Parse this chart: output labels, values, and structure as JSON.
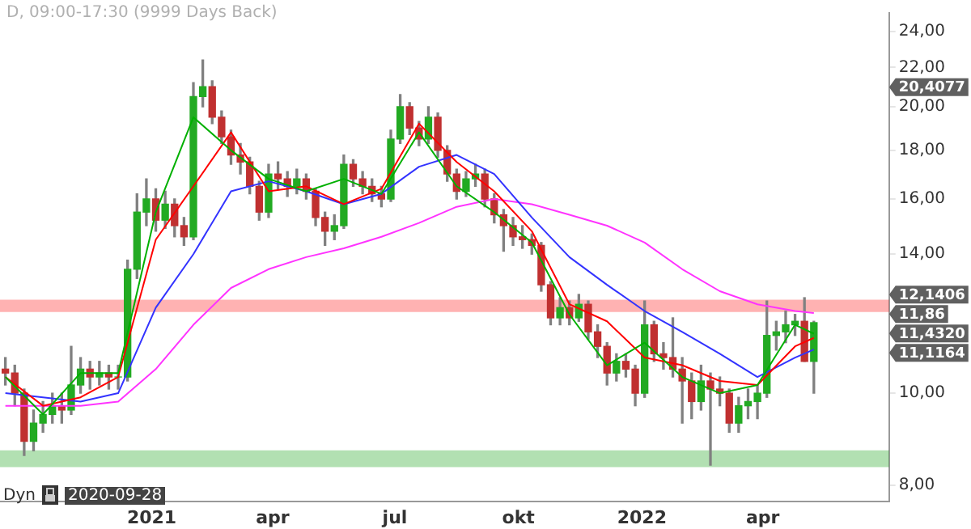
{
  "chart_data": {
    "type": "candlestick",
    "title": "D, 09:00-17:30 (9999 Days Back)",
    "x": [
      "2020-09-14",
      "2020-09-21",
      "2020-09-28",
      "2020-10-05",
      "2020-10-12",
      "2020-10-19",
      "2020-10-26",
      "2020-11-02",
      "2020-11-09",
      "2020-11-16",
      "2020-11-23",
      "2020-11-30",
      "2020-12-07",
      "2020-12-14",
      "2020-12-21",
      "2020-12-28",
      "2021-01-04",
      "2021-01-11",
      "2021-01-18",
      "2021-01-25",
      "2021-02-01",
      "2021-02-08",
      "2021-02-15",
      "2021-02-22",
      "2021-03-01",
      "2021-03-08",
      "2021-03-15",
      "2021-03-22",
      "2021-03-29",
      "2021-04-05",
      "2021-04-12",
      "2021-04-19",
      "2021-04-26",
      "2021-05-03",
      "2021-05-10",
      "2021-05-17",
      "2021-05-24",
      "2021-05-31",
      "2021-06-07",
      "2021-06-14",
      "2021-06-21",
      "2021-06-28",
      "2021-07-05",
      "2021-07-12",
      "2021-07-19",
      "2021-07-26",
      "2021-08-02",
      "2021-08-09",
      "2021-08-16",
      "2021-08-23",
      "2021-08-30",
      "2021-09-06",
      "2021-09-13",
      "2021-09-20",
      "2021-09-27",
      "2021-10-04",
      "2021-10-11",
      "2021-10-18",
      "2021-10-25",
      "2021-11-01",
      "2021-11-08",
      "2021-11-15",
      "2021-11-22",
      "2021-11-29",
      "2021-12-06",
      "2021-12-13",
      "2021-12-20",
      "2021-12-27",
      "2022-01-03",
      "2022-01-10",
      "2022-01-17",
      "2022-01-24",
      "2022-01-31",
      "2022-02-07",
      "2022-02-14",
      "2022-02-21",
      "2022-02-28",
      "2022-03-07",
      "2022-03-14",
      "2022-03-21",
      "2022-03-28",
      "2022-04-04",
      "2022-04-11",
      "2022-04-18",
      "2022-04-25",
      "2022-05-02",
      "2022-05-09"
    ],
    "ohlc": [
      [
        10.6,
        10.9,
        10.2,
        10.5
      ],
      [
        10.5,
        10.7,
        9.7,
        10.0
      ],
      [
        10.0,
        10.1,
        8.6,
        8.9
      ],
      [
        8.9,
        9.6,
        8.7,
        9.3
      ],
      [
        9.3,
        9.8,
        9.1,
        9.5
      ],
      [
        9.5,
        10.0,
        9.3,
        9.7
      ],
      [
        9.7,
        10.0,
        9.3,
        9.6
      ],
      [
        9.6,
        11.2,
        9.5,
        10.2
      ],
      [
        10.2,
        10.9,
        10.0,
        10.6
      ],
      [
        10.6,
        10.8,
        10.1,
        10.4
      ],
      [
        10.4,
        10.8,
        10.2,
        10.5
      ],
      [
        10.5,
        10.7,
        10.1,
        10.4
      ],
      [
        10.4,
        10.7,
        10.1,
        10.4
      ],
      [
        10.4,
        13.8,
        10.3,
        13.5
      ],
      [
        13.5,
        16.2,
        13.2,
        15.5
      ],
      [
        15.5,
        16.8,
        15.0,
        16.0
      ],
      [
        16.0,
        16.4,
        14.8,
        15.2
      ],
      [
        15.2,
        16.3,
        14.9,
        15.8
      ],
      [
        15.8,
        16.0,
        14.6,
        15.0
      ],
      [
        15.0,
        15.3,
        14.3,
        14.6
      ],
      [
        14.6,
        21.2,
        14.5,
        20.5
      ],
      [
        20.5,
        22.4,
        20.0,
        21.0
      ],
      [
        21.0,
        21.3,
        19.2,
        19.5
      ],
      [
        19.5,
        19.8,
        18.3,
        18.6
      ],
      [
        18.6,
        18.9,
        17.4,
        17.8
      ],
      [
        17.8,
        18.3,
        17.0,
        17.5
      ],
      [
        17.5,
        17.7,
        16.2,
        16.5
      ],
      [
        16.5,
        16.7,
        15.2,
        15.5
      ],
      [
        15.5,
        17.4,
        15.3,
        17.0
      ],
      [
        17.0,
        17.5,
        16.4,
        16.8
      ],
      [
        16.8,
        17.1,
        16.1,
        16.5
      ],
      [
        16.5,
        17.2,
        16.2,
        16.8
      ],
      [
        16.8,
        17.0,
        16.0,
        16.3
      ],
      [
        16.3,
        16.4,
        15.0,
        15.3
      ],
      [
        15.3,
        15.5,
        14.3,
        14.8
      ],
      [
        14.8,
        15.4,
        14.5,
        15.0
      ],
      [
        15.0,
        17.8,
        14.9,
        17.4
      ],
      [
        17.4,
        17.6,
        16.5,
        16.8
      ],
      [
        16.8,
        17.1,
        16.2,
        16.5
      ],
      [
        16.5,
        16.8,
        15.9,
        16.2
      ],
      [
        16.2,
        16.5,
        15.7,
        16.0
      ],
      [
        16.0,
        18.9,
        15.9,
        18.5
      ],
      [
        18.5,
        20.6,
        18.3,
        20.0
      ],
      [
        20.0,
        20.2,
        18.7,
        19.0
      ],
      [
        19.0,
        19.3,
        18.2,
        18.5
      ],
      [
        18.5,
        20.0,
        18.3,
        19.5
      ],
      [
        19.5,
        19.7,
        17.7,
        18.0
      ],
      [
        18.0,
        18.2,
        16.7,
        17.0
      ],
      [
        17.0,
        17.2,
        16.0,
        16.3
      ],
      [
        16.3,
        17.1,
        16.1,
        16.8
      ],
      [
        16.8,
        17.4,
        16.5,
        17.0
      ],
      [
        17.0,
        17.2,
        15.7,
        16.0
      ],
      [
        16.0,
        16.2,
        15.1,
        15.4
      ],
      [
        15.4,
        15.6,
        14.1,
        15.0
      ],
      [
        15.0,
        15.3,
        14.3,
        14.6
      ],
      [
        14.6,
        15.0,
        14.2,
        14.5
      ],
      [
        14.5,
        14.7,
        14.0,
        14.3
      ],
      [
        14.3,
        14.4,
        12.8,
        13.0
      ],
      [
        13.0,
        13.1,
        11.8,
        12.0
      ],
      [
        12.0,
        12.6,
        11.8,
        12.3
      ],
      [
        12.3,
        12.5,
        11.8,
        12.0
      ],
      [
        12.0,
        12.7,
        11.9,
        12.4
      ],
      [
        12.4,
        12.5,
        11.4,
        11.6
      ],
      [
        11.6,
        11.8,
        10.9,
        11.2
      ],
      [
        11.2,
        11.3,
        10.2,
        10.5
      ],
      [
        10.5,
        11.0,
        10.3,
        10.8
      ],
      [
        10.8,
        11.0,
        10.4,
        10.6
      ],
      [
        10.6,
        10.7,
        9.7,
        10.0
      ],
      [
        10.0,
        12.5,
        9.9,
        11.8
      ],
      [
        11.8,
        11.9,
        10.8,
        11.0
      ],
      [
        11.0,
        11.3,
        10.6,
        10.9
      ],
      [
        10.9,
        12.0,
        10.4,
        10.6
      ],
      [
        10.6,
        10.9,
        9.3,
        10.3
      ],
      [
        10.3,
        10.5,
        9.4,
        9.8
      ],
      [
        9.8,
        10.7,
        9.6,
        10.3
      ],
      [
        10.3,
        10.5,
        8.4,
        10.1
      ],
      [
        10.1,
        10.4,
        9.7,
        10.0
      ],
      [
        10.0,
        10.1,
        9.1,
        9.3
      ],
      [
        9.3,
        9.9,
        9.1,
        9.7
      ],
      [
        9.7,
        10.1,
        9.4,
        9.8
      ],
      [
        9.8,
        10.2,
        9.4,
        10.0
      ],
      [
        10.0,
        12.5,
        9.9,
        11.5
      ],
      [
        11.5,
        11.9,
        11.1,
        11.6
      ],
      [
        11.6,
        12.2,
        11.3,
        11.8
      ],
      [
        11.8,
        12.1,
        11.5,
        11.9
      ],
      [
        11.9,
        12.6,
        10.8,
        10.8
      ],
      [
        10.8,
        11.9,
        10.0,
        11.86
      ]
    ],
    "series": [
      {
        "type": "line",
        "color": "#00b000",
        "x": [
          "2020-09-14",
          "2020-10-12",
          "2020-11-09",
          "2020-12-07",
          "2021-01-04",
          "2021-02-01",
          "2021-03-01",
          "2021-03-29",
          "2021-04-26",
          "2021-05-24",
          "2021-06-21",
          "2021-07-19",
          "2021-08-16",
          "2021-09-13",
          "2021-10-11",
          "2021-11-08",
          "2021-12-06",
          "2022-01-03",
          "2022-01-31",
          "2022-02-28",
          "2022-03-28",
          "2022-04-25",
          "2022-05-09"
        ],
        "values": [
          10.4,
          9.5,
          10.5,
          10.5,
          15.5,
          19.5,
          18.0,
          16.8,
          16.3,
          16.8,
          16.2,
          18.8,
          16.5,
          15.5,
          14.4,
          12.1,
          10.7,
          11.3,
          10.4,
          10.0,
          10.2,
          11.8,
          11.55
        ]
      },
      {
        "type": "line",
        "color": "#ff0000",
        "x": [
          "2020-09-14",
          "2020-10-12",
          "2020-11-09",
          "2020-12-07",
          "2021-01-04",
          "2021-02-01",
          "2021-03-01",
          "2021-03-29",
          "2021-04-26",
          "2021-05-24",
          "2021-06-21",
          "2021-07-19",
          "2021-08-16",
          "2021-09-13",
          "2021-10-11",
          "2021-11-08",
          "2021-12-06",
          "2022-01-03",
          "2022-01-31",
          "2022-02-28",
          "2022-03-28",
          "2022-04-25",
          "2022-05-09"
        ],
        "values": [
          10.4,
          9.7,
          9.9,
          10.4,
          14.5,
          16.5,
          18.8,
          16.3,
          16.5,
          15.8,
          16.4,
          19.2,
          17.5,
          16.3,
          14.8,
          12.4,
          11.9,
          10.9,
          10.7,
          10.3,
          10.2,
          11.2,
          11.432
        ]
      },
      {
        "type": "line",
        "color": "#3333ff",
        "x": [
          "2020-09-14",
          "2020-10-12",
          "2020-11-09",
          "2020-12-07",
          "2021-01-04",
          "2021-02-01",
          "2021-03-01",
          "2021-03-29",
          "2021-04-26",
          "2021-05-24",
          "2021-06-21",
          "2021-07-19",
          "2021-08-16",
          "2021-09-13",
          "2021-10-11",
          "2021-11-08",
          "2021-12-06",
          "2022-01-03",
          "2022-01-31",
          "2022-02-28",
          "2022-03-28",
          "2022-04-25",
          "2022-05-09"
        ],
        "values": [
          10.0,
          9.9,
          9.8,
          10.0,
          12.3,
          14.0,
          16.3,
          16.7,
          16.3,
          15.8,
          16.2,
          17.3,
          17.8,
          17.0,
          15.3,
          13.9,
          13.0,
          12.2,
          11.6,
          11.0,
          10.4,
          10.9,
          11.116
        ]
      },
      {
        "type": "line",
        "color": "#ff33ff",
        "x": [
          "2020-09-14",
          "2020-10-12",
          "2020-11-09",
          "2020-12-07",
          "2021-01-04",
          "2021-02-01",
          "2021-03-01",
          "2021-03-29",
          "2021-04-26",
          "2021-05-24",
          "2021-06-21",
          "2021-07-19",
          "2021-08-16",
          "2021-09-13",
          "2021-10-11",
          "2021-11-08",
          "2021-12-06",
          "2022-01-03",
          "2022-01-31",
          "2022-02-28",
          "2022-03-28",
          "2022-04-25",
          "2022-05-09"
        ],
        "values": [
          9.7,
          9.7,
          9.7,
          9.8,
          10.6,
          11.8,
          12.9,
          13.5,
          13.9,
          14.2,
          14.6,
          15.1,
          15.7,
          16.0,
          15.8,
          15.4,
          15.0,
          14.4,
          13.5,
          12.8,
          12.4,
          12.2,
          12.14
        ]
      }
    ],
    "bands": [
      {
        "axis": "y",
        "from": 12.17,
        "to": 12.54,
        "color": "#ff0000"
      },
      {
        "axis": "y",
        "from": 8.36,
        "to": 8.71,
        "color": "#009900"
      }
    ],
    "xlim": [
      "2020-09-10",
      "2022-07-04"
    ],
    "xticks": [
      {
        "value": "2021-01-01",
        "label": "2021"
      },
      {
        "value": "2021-04-01",
        "label": "apr"
      },
      {
        "value": "2021-07-01",
        "label": "jul"
      },
      {
        "value": "2021-10-01",
        "label": "okt"
      },
      {
        "value": "2022-01-01",
        "label": "2022"
      },
      {
        "value": "2022-04-01",
        "label": "apr"
      }
    ],
    "ylim": [
      7.7,
      25.1
    ],
    "log": true,
    "yticks": [
      {
        "value": 8,
        "label": "8,00"
      },
      {
        "value": 10,
        "label": "10,00"
      },
      {
        "value": 14,
        "label": "14,00"
      },
      {
        "value": 16,
        "label": "16,00"
      },
      {
        "value": 18,
        "label": "18,00"
      },
      {
        "value": 20,
        "label": "20,00"
      },
      {
        "value": 22,
        "label": "22,00"
      },
      {
        "value": 24,
        "label": "24,00"
      }
    ],
    "annotations": [
      "20,4077",
      "12,1406",
      "11,86",
      "11,4320",
      "11,1164",
      "Dyn",
      "2020-09-28"
    ],
    "marker": "none",
    "legend": false
  }
}
